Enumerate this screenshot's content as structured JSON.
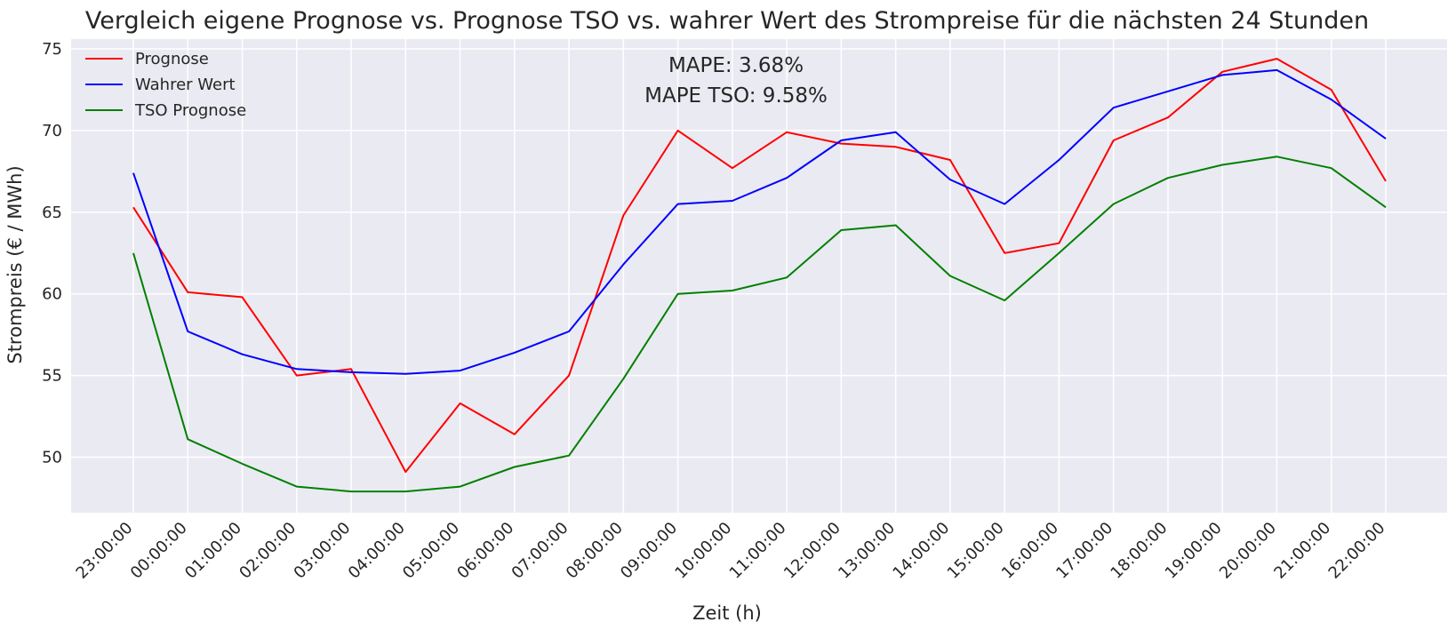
{
  "chart_data": {
    "type": "line",
    "title": "Vergleich eigene Prognose vs. Prognose TSO vs. wahrer Wert des Strompreise für die nächsten 24 Stunden",
    "xlabel": "Zeit (h)",
    "ylabel": "Strompreis (€ / MWh)",
    "ylim": [
      46.6,
      75.6
    ],
    "yticks": [
      50,
      55,
      60,
      65,
      70,
      75
    ],
    "grid": true,
    "legend": "top-left",
    "categories": [
      "23:00:00",
      "00:00:00",
      "01:00:00",
      "02:00:00",
      "03:00:00",
      "04:00:00",
      "05:00:00",
      "06:00:00",
      "07:00:00",
      "08:00:00",
      "09:00:00",
      "10:00:00",
      "11:00:00",
      "12:00:00",
      "13:00:00",
      "14:00:00",
      "15:00:00",
      "16:00:00",
      "17:00:00",
      "18:00:00",
      "19:00:00",
      "20:00:00",
      "21:00:00",
      "22:00:00"
    ],
    "series": [
      {
        "name": "Prognose",
        "color": "#ff0000",
        "values": [
          65.3,
          60.1,
          59.8,
          55.0,
          55.4,
          49.1,
          53.3,
          51.4,
          55.0,
          64.8,
          70.0,
          67.7,
          69.9,
          69.2,
          69.0,
          68.2,
          62.5,
          63.1,
          69.4,
          70.8,
          73.6,
          74.4,
          72.5,
          66.9
        ]
      },
      {
        "name": "Wahrer Wert",
        "color": "#0000ff",
        "values": [
          67.4,
          57.7,
          56.3,
          55.4,
          55.2,
          55.1,
          55.3,
          56.4,
          57.7,
          61.8,
          65.5,
          65.7,
          67.1,
          69.4,
          69.9,
          67.0,
          65.5,
          68.2,
          71.4,
          72.4,
          73.4,
          73.7,
          71.9,
          69.5
        ]
      },
      {
        "name": "TSO Prognose",
        "color": "#008000",
        "values": [
          62.5,
          51.1,
          49.6,
          48.2,
          47.9,
          47.9,
          48.2,
          49.4,
          50.1,
          54.8,
          60.0,
          60.2,
          61.0,
          63.9,
          64.2,
          61.1,
          59.6,
          62.5,
          65.5,
          67.1,
          67.9,
          68.4,
          67.7,
          65.3
        ]
      }
    ],
    "annotations": [
      "MAPE: 3.68%",
      "MAPE TSO: 9.58%"
    ]
  }
}
